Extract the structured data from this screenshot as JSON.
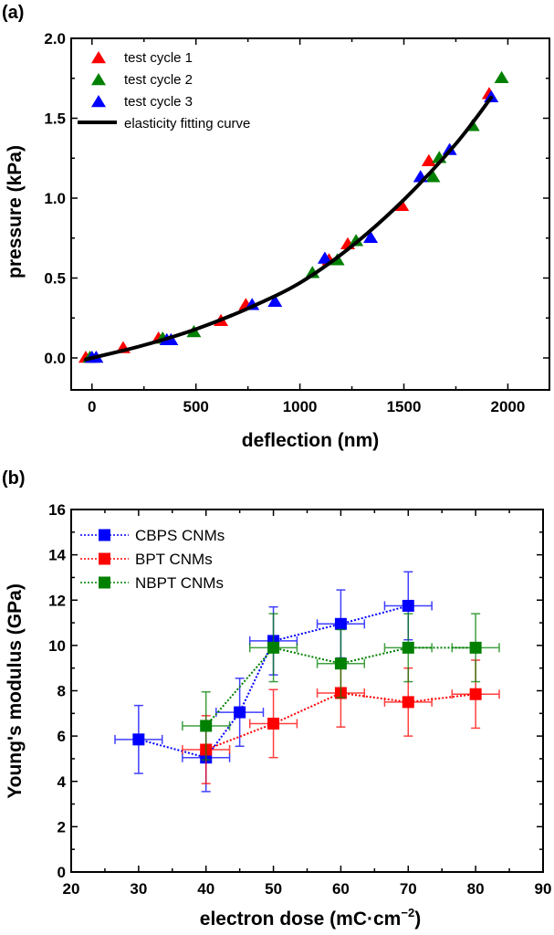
{
  "chart_data": [
    {
      "panel": "(a)",
      "type": "scatter",
      "xlabel": "deflection (nm)",
      "ylabel": "pressure (kPa)",
      "xlim": [
        -100,
        2200
      ],
      "ylim": [
        -0.2,
        2.0
      ],
      "xticks": [
        0,
        500,
        1000,
        1500,
        2000
      ],
      "xtick_labels": [
        "0",
        "500",
        "1000",
        "1500",
        "2000"
      ],
      "yticks": [
        0.0,
        0.5,
        1.0,
        1.5,
        2.0
      ],
      "ytick_labels": [
        "0.0",
        "0.5",
        "1.0",
        "1.5",
        "2.0"
      ],
      "legend_position": "top-left",
      "series": [
        {
          "name": "test cycle 1",
          "color": "#ff0000",
          "marker": "triangle",
          "x": [
            -30,
            150,
            320,
            620,
            740,
            1140,
            1230,
            1490,
            1620,
            1910
          ],
          "y": [
            0.0,
            0.06,
            0.12,
            0.23,
            0.33,
            0.61,
            0.71,
            0.95,
            1.23,
            1.65
          ]
        },
        {
          "name": "test cycle 2",
          "color": "#008000",
          "marker": "triangle",
          "x": [
            -10,
            340,
            490,
            1060,
            1180,
            1270,
            1640,
            1670,
            1830,
            1970
          ],
          "y": [
            0.0,
            0.12,
            0.16,
            0.53,
            0.61,
            0.73,
            1.13,
            1.25,
            1.45,
            1.75
          ]
        },
        {
          "name": "test cycle 3",
          "color": "#0000ff",
          "marker": "triangle",
          "x": [
            0,
            20,
            360,
            380,
            770,
            880,
            1120,
            1340,
            1580,
            1720,
            1920
          ],
          "y": [
            0.0,
            0.0,
            0.11,
            0.11,
            0.33,
            0.35,
            0.62,
            0.75,
            1.13,
            1.3,
            1.63
          ]
        },
        {
          "name": "elasticity fitting curve",
          "color": "#000000",
          "marker": "line",
          "x": [
            -30,
            0,
            250,
            500,
            750,
            1000,
            1250,
            1500,
            1750,
            1920
          ],
          "y": [
            -0.01,
            0.0,
            0.08,
            0.18,
            0.31,
            0.47,
            0.7,
            0.99,
            1.34,
            1.63
          ]
        }
      ]
    },
    {
      "panel": "(b)",
      "type": "scatter",
      "xlabel": "electron dose  (mC·cm",
      "xlabel_sup": "−2",
      "xlabel_end": ")",
      "ylabel": "Young's modulus (GPa)",
      "xlim": [
        20,
        90
      ],
      "ylim": [
        0,
        16
      ],
      "xticks": [
        20,
        30,
        40,
        50,
        60,
        70,
        80,
        90
      ],
      "xtick_labels": [
        "20",
        "30",
        "40",
        "50",
        "60",
        "70",
        "80",
        "90"
      ],
      "yticks": [
        0,
        2,
        4,
        6,
        8,
        10,
        12,
        14,
        16
      ],
      "ytick_labels": [
        "0",
        "2",
        "4",
        "6",
        "8",
        "10",
        "12",
        "14",
        "16"
      ],
      "legend_position": "top-left",
      "series": [
        {
          "name": "CBPS CNMs",
          "color": "#0000ff",
          "marker": "square",
          "line": "dotted",
          "x": [
            30,
            40,
            45,
            50,
            60,
            70
          ],
          "y": [
            5.85,
            5.05,
            7.05,
            10.2,
            10.95,
            11.75
          ],
          "yerr": [
            1.5,
            1.5,
            1.5,
            1.5,
            1.5,
            1.5
          ],
          "xerr": [
            3.5,
            3.5,
            3.5,
            3.5,
            3.5,
            3.5
          ]
        },
        {
          "name": "BPT CNMs",
          "color": "#ff0000",
          "marker": "square",
          "line": "dotted",
          "x": [
            40,
            50,
            60,
            70,
            80
          ],
          "y": [
            5.4,
            6.55,
            7.9,
            7.5,
            7.85
          ],
          "yerr": [
            1.5,
            1.5,
            1.5,
            1.5,
            1.5
          ],
          "xerr": [
            3.5,
            3.5,
            3.5,
            3.5,
            3.5
          ]
        },
        {
          "name": "NBPT CNMs",
          "color": "#008000",
          "marker": "square",
          "line": "dotted",
          "x": [
            40,
            50,
            60,
            70,
            80
          ],
          "y": [
            6.45,
            9.9,
            9.2,
            9.9,
            9.9
          ],
          "yerr": [
            1.5,
            1.5,
            1.5,
            1.5,
            1.5
          ],
          "xerr": [
            3.5,
            3.5,
            3.5,
            3.5,
            3.5
          ]
        }
      ]
    }
  ]
}
